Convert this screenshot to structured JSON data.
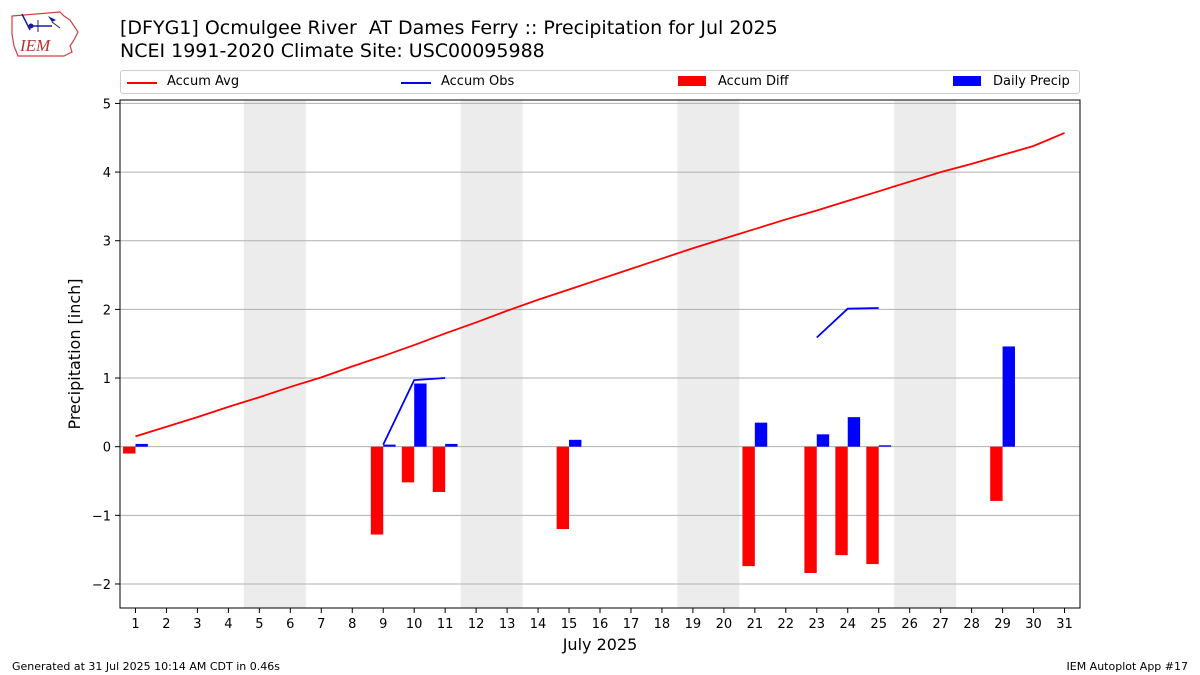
{
  "header": {
    "logo_text": "IEM",
    "title_line1": "[DFYG1] Ocmulgee River  AT Dames Ferry :: Precipitation for Jul 2025",
    "title_line2": "NCEI 1991-2020 Climate Site: USC00095988"
  },
  "legend": {
    "items": [
      {
        "label": "Accum Avg",
        "color": "#ff0000",
        "kind": "line"
      },
      {
        "label": "Accum Obs",
        "color": "#0000ff",
        "kind": "line"
      },
      {
        "label": "Accum Diff",
        "color": "#ff0000",
        "kind": "patch"
      },
      {
        "label": "Daily Precip",
        "color": "#0000ff",
        "kind": "patch"
      }
    ]
  },
  "chart_data": {
    "type": "bar",
    "xlabel": "July 2025",
    "ylabel": "Precipitation [inch]",
    "xlim": [
      0.5,
      31.5
    ],
    "ylim": [
      -2.35,
      5.05
    ],
    "y_ticks": [
      -2,
      -1,
      0,
      1,
      2,
      3,
      4,
      5
    ],
    "y_tick_labels": [
      "−2",
      "−1",
      "0",
      "1",
      "2",
      "3",
      "4",
      "5"
    ],
    "x_ticks": [
      1,
      2,
      3,
      4,
      5,
      6,
      7,
      8,
      9,
      10,
      11,
      12,
      13,
      14,
      15,
      16,
      17,
      18,
      19,
      20,
      21,
      22,
      23,
      24,
      25,
      26,
      27,
      28,
      29,
      30,
      31
    ],
    "grid": "y",
    "weekend_shading": [
      [
        4.5,
        6.5
      ],
      [
        11.5,
        13.5
      ],
      [
        18.5,
        20.5
      ],
      [
        25.5,
        27.5
      ]
    ],
    "colors": {
      "avg": "#ff0000",
      "obs": "#0000ff",
      "diff": "#ff0000",
      "daily": "#0000ff",
      "shade": "#ececec",
      "grid": "#b0b0b0"
    },
    "accum_avg": {
      "name": "Accum Avg",
      "x": [
        1,
        2,
        3,
        4,
        5,
        6,
        7,
        8,
        9,
        10,
        11,
        12,
        13,
        14,
        15,
        16,
        17,
        18,
        19,
        20,
        21,
        22,
        23,
        24,
        25,
        26,
        27,
        28,
        29,
        30,
        31
      ],
      "values": [
        0.15,
        0.29,
        0.43,
        0.58,
        0.72,
        0.87,
        1.01,
        1.17,
        1.32,
        1.48,
        1.65,
        1.81,
        1.98,
        2.14,
        2.29,
        2.44,
        2.59,
        2.74,
        2.89,
        3.03,
        3.17,
        3.31,
        3.44,
        3.58,
        3.72,
        3.86,
        4.0,
        4.12,
        4.25,
        4.38,
        4.57
      ]
    },
    "accum_obs": {
      "name": "Accum Obs",
      "segments": [
        {
          "x": [
            9,
            10,
            11
          ],
          "values": [
            0.03,
            0.97,
            1.0
          ]
        },
        {
          "x": [
            23,
            24,
            25
          ],
          "values": [
            1.59,
            2.01,
            2.02
          ]
        }
      ]
    },
    "accum_diff": {
      "name": "Accum Diff",
      "x": [
        1,
        9,
        10,
        11,
        15,
        21,
        23,
        24,
        25,
        29
      ],
      "values": [
        -0.1,
        -1.28,
        -0.52,
        -0.66,
        -1.2,
        -1.74,
        -1.84,
        -1.58,
        -1.71,
        -0.79
      ]
    },
    "daily_precip": {
      "name": "Daily Precip",
      "x": [
        1,
        9,
        10,
        11,
        15,
        21,
        23,
        24,
        25,
        29
      ],
      "values": [
        0.04,
        0.03,
        0.92,
        0.04,
        0.1,
        0.35,
        0.18,
        0.43,
        0.02,
        1.46
      ]
    }
  },
  "footer": {
    "left": "Generated at 31 Jul 2025 10:14 AM CDT in 0.46s",
    "right": "IEM Autoplot App #17"
  }
}
